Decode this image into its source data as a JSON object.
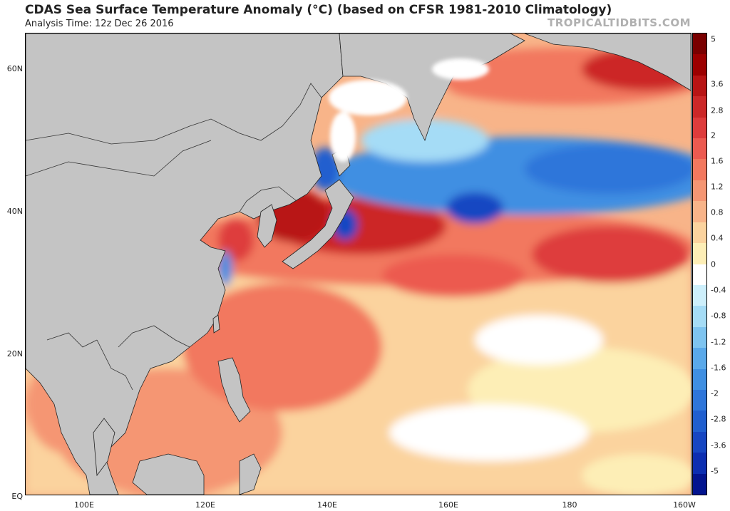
{
  "header": {
    "title": "CDAS Sea Surface Temperature Anomaly (°C) (based on CFSR 1981-2010 Climatology)",
    "subtitle": "Analysis Time: 12z Dec 26 2016",
    "brand": "TROPICALTIDBITS.COM"
  },
  "map": {
    "lat_labels": [
      "60N",
      "40N",
      "20N",
      "EQ"
    ],
    "lon_labels": [
      "100E",
      "120E",
      "140E",
      "160E",
      "180",
      "160W"
    ]
  },
  "colors": {
    "land": "#c4c4c4",
    "ice": "#ffffff",
    "scale": [
      "#7a0000",
      "#9c0000",
      "#b81414",
      "#cc2828",
      "#de3c3c",
      "#ec5a50",
      "#f2785e",
      "#f59673",
      "#f8b489",
      "#fbd39e",
      "#fdeeb6",
      "#ffffff",
      "#cdeffb",
      "#a5dcf6",
      "#7ec4f0",
      "#5aa9ea",
      "#3f8fe2",
      "#2e76da",
      "#205fcf",
      "#1646c2",
      "#0c2eb1",
      "#03148f"
    ]
  },
  "colorbar": {
    "ticks": [
      "5",
      "3.6",
      "2.8",
      "2",
      "1.6",
      "1.2",
      "0.8",
      "0.4",
      "0",
      "-0.4",
      "-0.8",
      "-1.2",
      "-1.6",
      "-2",
      "-2.8",
      "-3.6",
      "-5"
    ]
  }
}
